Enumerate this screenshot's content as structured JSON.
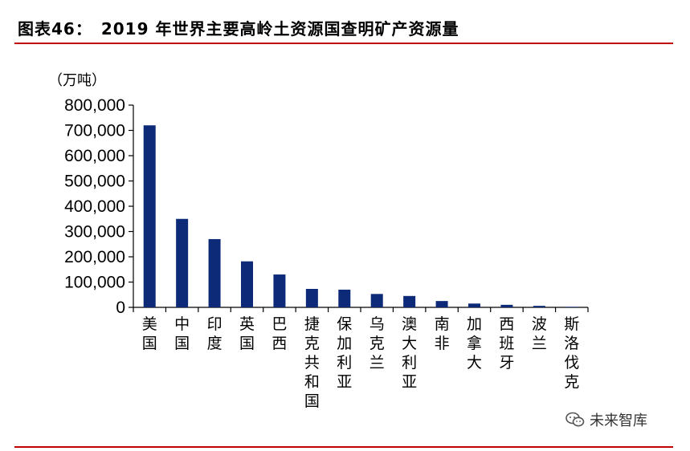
{
  "header": {
    "title": "图表46：　2019 年世界主要高岭土资源国查明矿产资源量"
  },
  "watermark": {
    "icon": "wechat-icon",
    "text": "未来智库"
  },
  "chart_data": {
    "type": "bar",
    "title": "",
    "unit_label": "（万吨）",
    "xlabel": "",
    "ylabel": "",
    "categories": [
      "美国",
      "中国",
      "印度",
      "英国",
      "巴西",
      "捷克共和国",
      "保加利亚",
      "乌克兰",
      "澳大利亚",
      "南非",
      "加拿大",
      "西班牙",
      "波兰",
      "斯洛伐克"
    ],
    "values": [
      720000,
      350000,
      270000,
      182000,
      130000,
      73000,
      70000,
      53000,
      45000,
      25000,
      15000,
      10000,
      6000,
      2000
    ],
    "ylim": [
      0,
      800000
    ],
    "yticks": [
      "0",
      "100,000",
      "200,000",
      "300,000",
      "400,000",
      "500,000",
      "600,000",
      "700,000",
      "800,000"
    ],
    "bar_color": "#0d2a78",
    "grid": false,
    "legend": "none"
  }
}
